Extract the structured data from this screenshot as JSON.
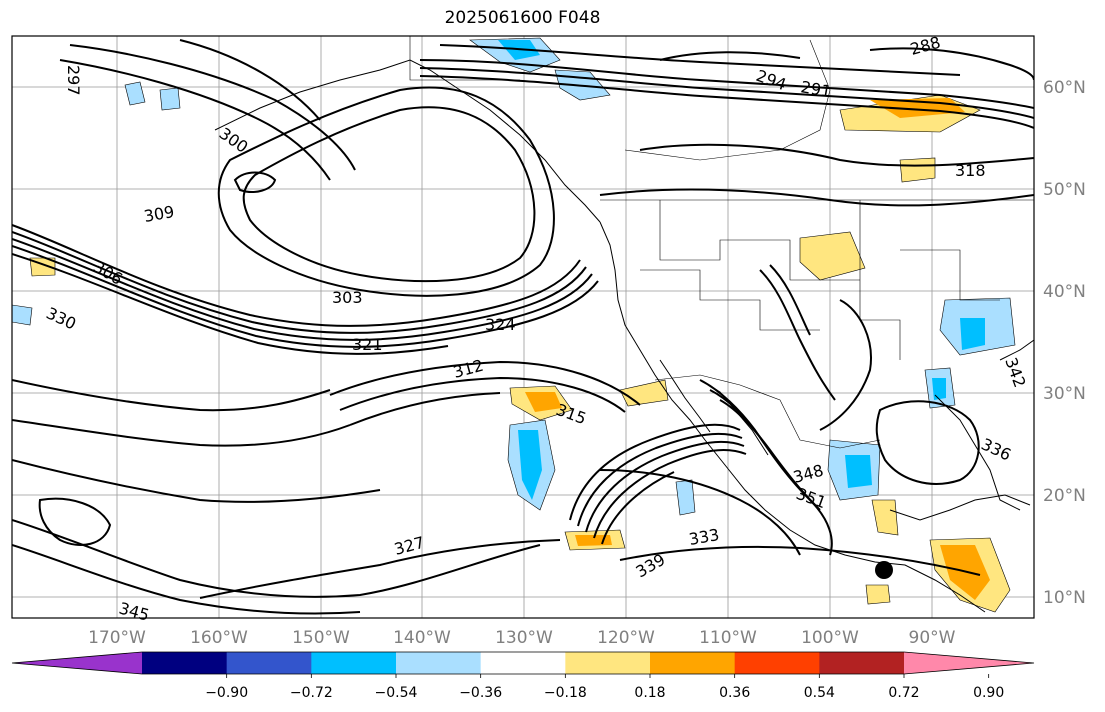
{
  "title": "2025061600 F048",
  "lon_ticks": [
    "170°W",
    "160°W",
    "150°W",
    "140°W",
    "130°W",
    "120°W",
    "110°W",
    "100°W",
    "90°W"
  ],
  "lat_ticks": [
    "60°N",
    "50°N",
    "40°N",
    "30°N",
    "20°N",
    "10°N"
  ],
  "colorbar": {
    "ticks": [
      "−0.90",
      "−0.72",
      "−0.54",
      "−0.36",
      "−0.18",
      "0.18",
      "0.36",
      "0.54",
      "0.72",
      "0.90"
    ],
    "colors": [
      "#9933cc",
      "#000080",
      "#3355cc",
      "#00bfff",
      "#aadfff",
      "#ffffff",
      "#ffe680",
      "#ffa500",
      "#ff4000",
      "#b22222",
      "#ff88aa"
    ]
  },
  "contour_labels": [
    {
      "text": "309"
    },
    {
      "text": "306"
    },
    {
      "text": "303"
    },
    {
      "text": "321"
    },
    {
      "text": "324"
    },
    {
      "text": "312"
    },
    {
      "text": "315"
    },
    {
      "text": "330"
    },
    {
      "text": "345"
    },
    {
      "text": "327"
    },
    {
      "text": "339"
    },
    {
      "text": "348"
    },
    {
      "text": "351"
    },
    {
      "text": "291"
    },
    {
      "text": "294"
    },
    {
      "text": "318"
    },
    {
      "text": "300"
    },
    {
      "text": "336"
    },
    {
      "text": "342"
    },
    {
      "text": "333"
    },
    {
      "text": "288"
    },
    {
      "text": "297"
    }
  ],
  "fills": {
    "blue": "#aadfff",
    "cyan": "#00bfff",
    "yellow": "#ffe680",
    "orange": "#ffa500"
  }
}
